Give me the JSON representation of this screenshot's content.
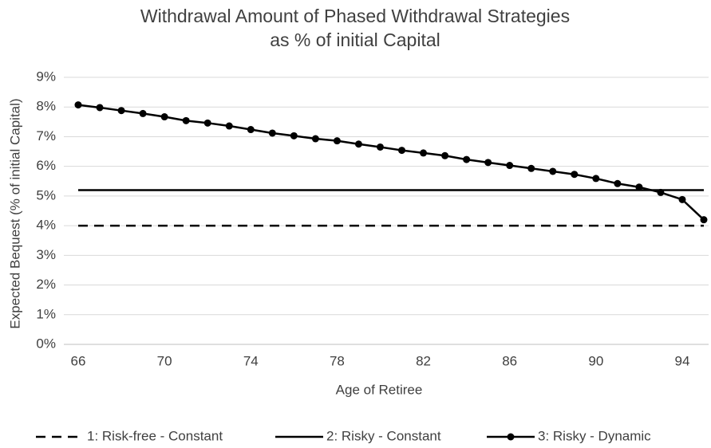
{
  "chart_data": {
    "type": "line",
    "title": [
      "Withdrawal Amount of Phased Withdrawal Strategies",
      "as % of initial Capital"
    ],
    "x_label": "Age of Retiree",
    "y_label": "Expected Bequest  (% of initial Capital)",
    "x": [
      66,
      67,
      68,
      69,
      70,
      71,
      72,
      73,
      74,
      75,
      76,
      77,
      78,
      79,
      80,
      81,
      82,
      83,
      84,
      85,
      86,
      87,
      88,
      89,
      90,
      91,
      92,
      93,
      94,
      95
    ],
    "series": [
      {
        "name": "1: Risk-free - Constant",
        "color": "#000000",
        "dashed": true,
        "markers": false,
        "values": [
          4,
          4,
          4,
          4,
          4,
          4,
          4,
          4,
          4,
          4,
          4,
          4,
          4,
          4,
          4,
          4,
          4,
          4,
          4,
          4,
          4,
          4,
          4,
          4,
          4,
          4,
          4,
          4,
          4,
          4
        ]
      },
      {
        "name": "2: Risky - Constant",
        "color": "#000000",
        "dashed": false,
        "markers": false,
        "values": [
          5.2,
          5.2,
          5.2,
          5.2,
          5.2,
          5.2,
          5.2,
          5.2,
          5.2,
          5.2,
          5.2,
          5.2,
          5.2,
          5.2,
          5.2,
          5.2,
          5.2,
          5.2,
          5.2,
          5.2,
          5.2,
          5.2,
          5.2,
          5.2,
          5.2,
          5.2,
          5.2,
          5.2,
          5.2,
          5.2
        ]
      },
      {
        "name": "3: Risky - Dynamic",
        "color": "#000000",
        "dashed": false,
        "markers": true,
        "values": [
          8.07,
          7.98,
          7.88,
          7.78,
          7.67,
          7.54,
          7.46,
          7.36,
          7.24,
          7.12,
          7.03,
          6.93,
          6.86,
          6.75,
          6.65,
          6.54,
          6.45,
          6.36,
          6.23,
          6.13,
          6.03,
          5.93,
          5.83,
          5.73,
          5.59,
          5.42,
          5.3,
          5.12,
          4.88,
          4.2
        ]
      }
    ],
    "xlim": [
      66,
      95
    ],
    "xticks": [
      66,
      70,
      74,
      78,
      82,
      86,
      90,
      94
    ],
    "ylim": [
      0,
      9
    ],
    "yticks": [
      {
        "value": 0,
        "label": "0%"
      },
      {
        "value": 1,
        "label": "1%"
      },
      {
        "value": 2,
        "label": "2%"
      },
      {
        "value": 3,
        "label": "3%"
      },
      {
        "value": 4,
        "label": "4%"
      },
      {
        "value": 5,
        "label": "5%"
      },
      {
        "value": 6,
        "label": "6%"
      },
      {
        "value": 7,
        "label": "7%"
      },
      {
        "value": 8,
        "label": "8%"
      },
      {
        "value": 9,
        "label": "9%"
      }
    ],
    "grid": true,
    "legend": "bottom"
  }
}
